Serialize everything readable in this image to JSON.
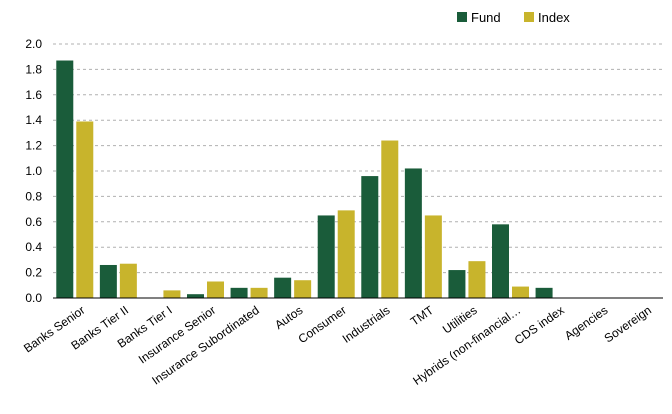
{
  "chart_data": {
    "type": "bar",
    "title": "",
    "xlabel": "",
    "ylabel": "",
    "ylim": [
      0,
      2.0
    ],
    "yticks": [
      "0.0",
      "0.2",
      "0.4",
      "0.6",
      "0.8",
      "1.0",
      "1.2",
      "1.4",
      "1.6",
      "1.8",
      "2.0"
    ],
    "grid": true,
    "legend_position": "top-right",
    "categories": [
      "Banks Senior",
      "Banks Tier II",
      "Banks Tier I",
      "Insurance Senior",
      "Insurance Subordinated",
      "Autos",
      "Consumer",
      "Industrials",
      "TMT",
      "Utilities",
      "Hybrids (non-financial…",
      "CDS index",
      "Agencies",
      "Sovereign"
    ],
    "series": [
      {
        "name": "Fund",
        "color": "#1a5c3a",
        "values": [
          1.87,
          0.26,
          0.0,
          0.03,
          0.08,
          0.16,
          0.65,
          0.96,
          1.02,
          0.22,
          0.58,
          0.08,
          0.0,
          0.0
        ]
      },
      {
        "name": "Index",
        "color": "#c8b42c",
        "values": [
          1.39,
          0.27,
          0.06,
          0.13,
          0.08,
          0.14,
          0.69,
          1.24,
          0.65,
          0.29,
          0.09,
          0.0,
          0.0,
          0.0
        ]
      }
    ]
  }
}
